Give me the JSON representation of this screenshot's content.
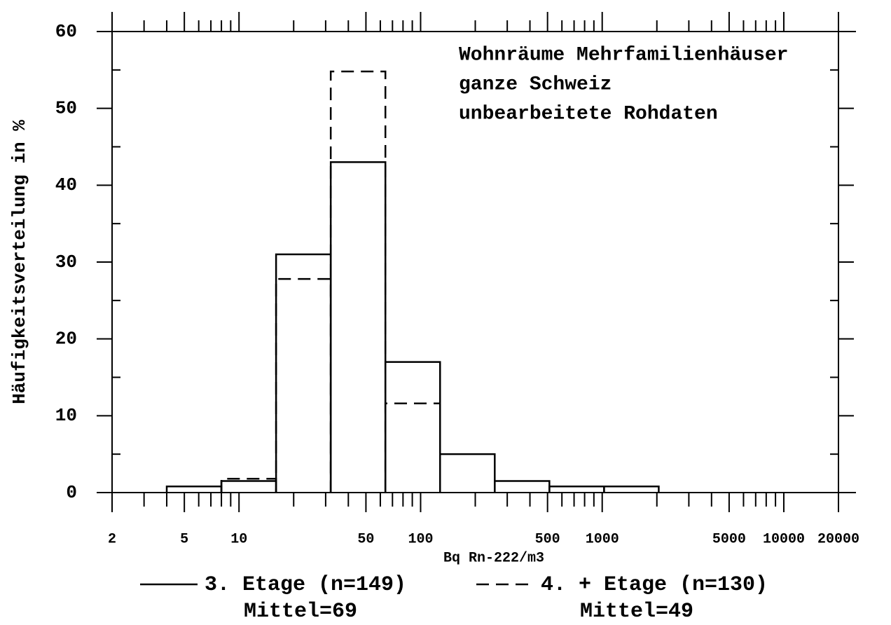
{
  "chart_data": {
    "type": "histogram",
    "annotations": [
      "Wohnräume Mehrfamilienhäuser",
      "ganze Schweiz",
      "unbearbeitete Rohdaten"
    ],
    "x_label": "Bq Rn-222/m3",
    "y_label": "Häufigkeitsverteilung in %",
    "bins": [
      4,
      8,
      16,
      32,
      64,
      128,
      256,
      512,
      1024,
      2048
    ],
    "series": [
      {
        "name": "3. Etage (n=149)",
        "legend_sublabel": "Mittel=69",
        "color": "#000000",
        "dash": "solid",
        "values": [
          0.8,
          1.5,
          31,
          43,
          17,
          5,
          1.5,
          0.8,
          0.8
        ]
      },
      {
        "name": "4. + Etage (n=130)",
        "legend_sublabel": "Mittel=49",
        "color": "#000000",
        "dash": "dashed",
        "values": [
          null,
          1.8,
          27.8,
          54.8,
          11.6,
          null,
          null,
          null,
          null
        ]
      }
    ],
    "xscale": "log",
    "xlim": [
      2,
      20000
    ],
    "xticks": [
      2,
      5,
      10,
      50,
      100,
      500,
      1000,
      5000,
      10000,
      20000
    ],
    "xminor_ticks": [
      3,
      4,
      6,
      7,
      8,
      9,
      20,
      30,
      40,
      60,
      70,
      80,
      90,
      200,
      300,
      400,
      600,
      700,
      800,
      900,
      2000,
      3000,
      4000,
      6000,
      7000,
      8000,
      9000
    ],
    "ylim": [
      0,
      60
    ],
    "yticks": [
      0,
      10,
      20,
      30,
      40,
      50,
      60
    ],
    "yminor_ticks": [
      5,
      15,
      25,
      35,
      45,
      55
    ]
  }
}
